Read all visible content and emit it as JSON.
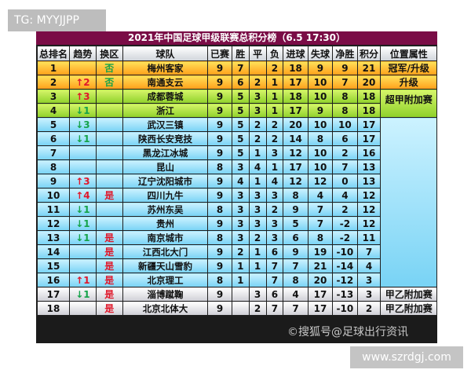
{
  "watermarks": {
    "top_left": "TG: MYYJJPP",
    "bottom_right": "www.szrdgj.com",
    "faint": "©搜狐号@足球出行资讯"
  },
  "colors": {
    "title_bg": "#7a0c46",
    "up_arrow": "#e0182b",
    "down_arrow": "#16a34a"
  },
  "table": {
    "title": "2021年中国足球甲级联赛总积分榜（6.5 17:30）",
    "headers": [
      "总排名",
      "趋势",
      "换区",
      "球队",
      "已赛",
      "胜",
      "平",
      "负",
      "进球",
      "失球",
      "净胜",
      "积分",
      "位置属性"
    ],
    "rows": [
      {
        "rank": "1",
        "trend": "",
        "swap": "否",
        "team": "梅州客家",
        "played": "9",
        "w": "7",
        "d": "",
        "l": "2",
        "gf": "18",
        "ga": "9",
        "gd": "9",
        "pts": "21"
      },
      {
        "rank": "2",
        "trend": "↑2",
        "swap": "否",
        "team": "南通支云",
        "played": "9",
        "w": "6",
        "d": "2",
        "l": "1",
        "gf": "17",
        "ga": "10",
        "gd": "7",
        "pts": "20"
      },
      {
        "rank": "3",
        "trend": "↑3",
        "swap": "",
        "team": "成都蓉城",
        "played": "9",
        "w": "5",
        "d": "3",
        "l": "1",
        "gf": "18",
        "ga": "10",
        "gd": "8",
        "pts": "18"
      },
      {
        "rank": "4",
        "trend": "↓1",
        "swap": "",
        "team": "浙江",
        "played": "9",
        "w": "5",
        "d": "3",
        "l": "1",
        "gf": "17",
        "ga": "9",
        "gd": "8",
        "pts": "18"
      },
      {
        "rank": "5",
        "trend": "↓3",
        "swap": "",
        "team": "武汉三镇",
        "played": "9",
        "w": "5",
        "d": "2",
        "l": "2",
        "gf": "20",
        "ga": "10",
        "gd": "10",
        "pts": "17"
      },
      {
        "rank": "6",
        "trend": "↓1",
        "swap": "",
        "team": "陕西长安竞技",
        "played": "9",
        "w": "5",
        "d": "2",
        "l": "2",
        "gf": "14",
        "ga": "8",
        "gd": "6",
        "pts": "17"
      },
      {
        "rank": "7",
        "trend": "",
        "swap": "",
        "team": "黑龙江冰城",
        "played": "9",
        "w": "5",
        "d": "1",
        "l": "3",
        "gf": "12",
        "ga": "10",
        "gd": "2",
        "pts": "16"
      },
      {
        "rank": "8",
        "trend": "",
        "swap": "",
        "team": "昆山",
        "played": "8",
        "w": "3",
        "d": "4",
        "l": "1",
        "gf": "17",
        "ga": "10",
        "gd": "7",
        "pts": "13"
      },
      {
        "rank": "9",
        "trend": "↑3",
        "swap": "",
        "team": "辽宁沈阳城市",
        "played": "9",
        "w": "4",
        "d": "1",
        "l": "4",
        "gf": "12",
        "ga": "12",
        "gd": "0",
        "pts": "13"
      },
      {
        "rank": "10",
        "trend": "↑4",
        "swap": "是",
        "team": "四川九牛",
        "played": "9",
        "w": "3",
        "d": "3",
        "l": "3",
        "gf": "8",
        "ga": "4",
        "gd": "4",
        "pts": "12"
      },
      {
        "rank": "11",
        "trend": "↓1",
        "swap": "",
        "team": "苏州东吴",
        "played": "8",
        "w": "3",
        "d": "3",
        "l": "2",
        "gf": "9",
        "ga": "7",
        "gd": "2",
        "pts": "12"
      },
      {
        "rank": "12",
        "trend": "↓1",
        "swap": "",
        "team": "贵州",
        "played": "9",
        "w": "3",
        "d": "3",
        "l": "3",
        "gf": "5",
        "ga": "7",
        "gd": "-2",
        "pts": "12"
      },
      {
        "rank": "13",
        "trend": "↓1",
        "swap": "是",
        "team": "南京城市",
        "played": "8",
        "w": "3",
        "d": "2",
        "l": "3",
        "gf": "6",
        "ga": "8",
        "gd": "-2",
        "pts": "11"
      },
      {
        "rank": "14",
        "trend": "",
        "swap": "是",
        "team": "江西北大门",
        "played": "9",
        "w": "2",
        "d": "1",
        "l": "6",
        "gf": "9",
        "ga": "19",
        "gd": "-10",
        "pts": "7"
      },
      {
        "rank": "15",
        "trend": "",
        "swap": "是",
        "team": "新疆天山雪豹",
        "played": "9",
        "w": "1",
        "d": "1",
        "l": "7",
        "gf": "7",
        "ga": "21",
        "gd": "-14",
        "pts": "4"
      },
      {
        "rank": "16",
        "trend": "↑1",
        "swap": "是",
        "team": "北京理工",
        "played": "8",
        "w": "1",
        "d": "",
        "l": "7",
        "gf": "8",
        "ga": "20",
        "gd": "-12",
        "pts": "3"
      },
      {
        "rank": "17",
        "trend": "↓1",
        "swap": "是",
        "team": "淄博蹴鞠",
        "played": "9",
        "w": "",
        "d": "3",
        "l": "6",
        "gf": "4",
        "ga": "17",
        "gd": "-13",
        "pts": "3"
      },
      {
        "rank": "18",
        "trend": "",
        "swap": "是",
        "team": "北京北体大",
        "played": "9",
        "w": "",
        "d": "2",
        "l": "7",
        "gf": "7",
        "ga": "17",
        "gd": "-10",
        "pts": "2"
      }
    ],
    "attributes": {
      "r1": "冠军/升级",
      "r2": "升级",
      "r3_4": "超甲附加赛",
      "r17": "甲乙附加赛",
      "r18": "甲乙附加赛"
    }
  }
}
